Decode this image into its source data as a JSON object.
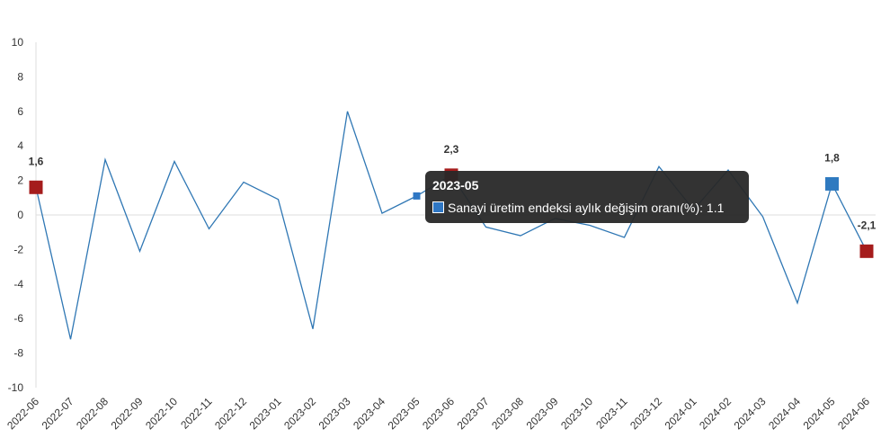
{
  "chart_data": {
    "type": "line",
    "categories": [
      "2022-06",
      "2022-07",
      "2022-08",
      "2022-09",
      "2022-10",
      "2022-11",
      "2022-12",
      "2023-01",
      "2023-02",
      "2023-03",
      "2023-04",
      "2023-05",
      "2023-06",
      "2023-07",
      "2023-08",
      "2023-09",
      "2023-10",
      "2023-11",
      "2023-12",
      "2024-01",
      "2024-02",
      "2024-03",
      "2024-04",
      "2024-05",
      "2024-06"
    ],
    "series": [
      {
        "name": "Sanayi üretim endeksi aylık değişim oranı(%)",
        "color": "#2f77b4",
        "values": [
          1.6,
          -7.2,
          3.2,
          -2.1,
          3.1,
          -0.8,
          1.9,
          0.9,
          -6.6,
          6.0,
          0.1,
          1.1,
          2.3,
          -0.7,
          -1.2,
          -0.2,
          -0.6,
          -1.3,
          2.8,
          0.3,
          2.6,
          -0.1,
          -5.1,
          1.8,
          -2.1
        ],
        "value_labels": [
          "1,6",
          null,
          null,
          null,
          null,
          null,
          null,
          null,
          null,
          null,
          null,
          null,
          "2,3",
          null,
          null,
          null,
          null,
          null,
          null,
          null,
          null,
          null,
          null,
          "1,8",
          "-2,1"
        ],
        "marker_colors": [
          "#a51c1c",
          null,
          null,
          null,
          null,
          null,
          null,
          null,
          null,
          null,
          null,
          "#2f77c4",
          "#a51c1c",
          null,
          null,
          null,
          null,
          null,
          null,
          null,
          null,
          null,
          null,
          "#2f7ac0",
          "#a51c1c"
        ]
      }
    ],
    "ylim": [
      -10,
      10
    ],
    "yticks": [
      -10,
      -8,
      -6,
      -4,
      -2,
      0,
      2,
      4,
      6,
      8,
      10
    ],
    "tooltip": {
      "title": "2023-05",
      "series": "Sanayi üretim endeksi aylık değişim oranı(%)",
      "value": 1.1,
      "index": 11
    }
  }
}
